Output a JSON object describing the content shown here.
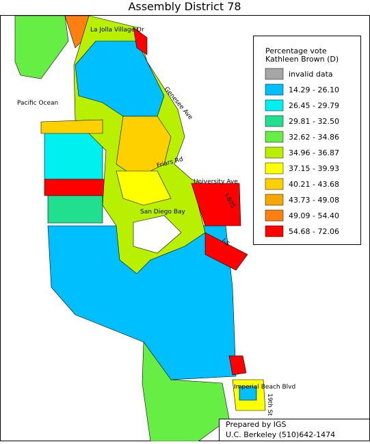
{
  "header": {
    "title": "Assembly District 78"
  },
  "legend": {
    "title": [
      "Percentage vote",
      "Kathleen Brown (D)"
    ],
    "items": [
      {
        "label": "invalid data",
        "color": "#a6a6a6"
      },
      {
        "label": "14.29 - 26.10",
        "color": "#00bfff"
      },
      {
        "label": "26.45 - 29.79",
        "color": "#00f0f0"
      },
      {
        "label": "29.81 - 32.50",
        "color": "#20e090"
      },
      {
        "label": "32.62 - 34.86",
        "color": "#66ee44"
      },
      {
        "label": "34.96 - 36.87",
        "color": "#b8f000"
      },
      {
        "label": "37.15 - 39.93",
        "color": "#ffff00"
      },
      {
        "label": "40.21 - 43.68",
        "color": "#ffd000"
      },
      {
        "label": "43.73 - 49.08",
        "color": "#f5a800"
      },
      {
        "label": "49.09 - 54.40",
        "color": "#ff8010"
      },
      {
        "label": "54.68 - 72.06",
        "color": "#ff0000"
      }
    ]
  },
  "map_labels": [
    "La Jolla Village Dr",
    "Pacific Ocean",
    "Genesee Ave",
    "Friars Rd",
    "University Ave",
    "I-805",
    "San Diego Bay",
    "I-5",
    "Imperial Beach Blvd",
    "19th St"
  ],
  "footer": {
    "line1": "Prepared by IGS",
    "line2": "U.C. Berkeley (510)642-1474"
  }
}
